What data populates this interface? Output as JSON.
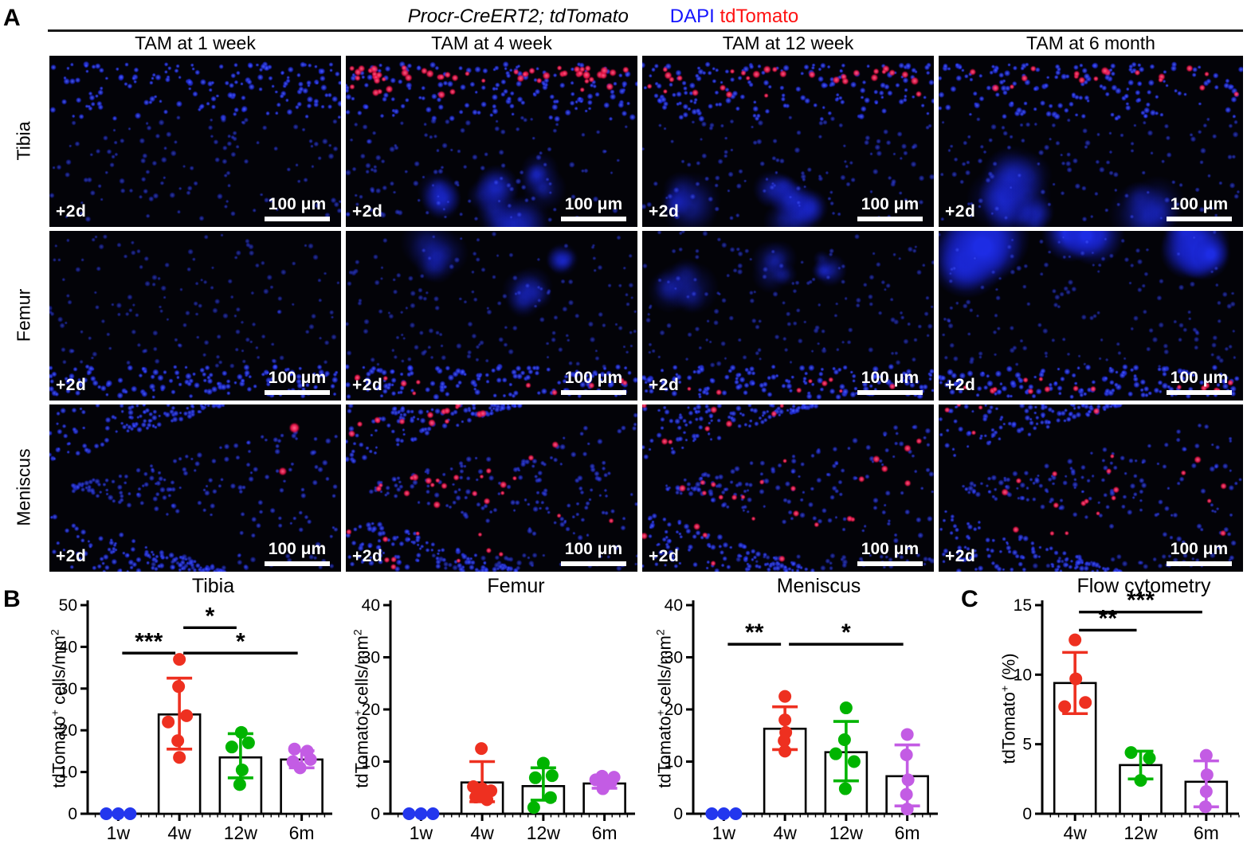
{
  "figure": {
    "panel_a_label": "A",
    "panel_b_label": "B",
    "panel_c_label": "C"
  },
  "panel_a": {
    "title_genotype": "Procr-CreERT2; tdTomato",
    "legend_dapi": "DAPI",
    "legend_tdtomato": "tdTomato",
    "colors": {
      "dapi_text": "#1414ff",
      "tdtomato_text": "#ff1212"
    },
    "column_headers": [
      "TAM at 1 week",
      "TAM at 4 week",
      "TAM at 12 week",
      "TAM at 6 month"
    ],
    "row_labels": [
      "Tibia",
      "Femur",
      "Meniscus"
    ],
    "time_label": "+2d",
    "scale_label": "100 μm",
    "tiles": [
      {
        "row": "Tibia",
        "col": "TAM at 1 week",
        "tissue": "tibia",
        "red_pattern": "none",
        "red_count": 0,
        "seed": 11,
        "blobs": false
      },
      {
        "row": "Tibia",
        "col": "TAM at 4 week",
        "tissue": "tibia",
        "red_pattern": "top",
        "red_count": 55,
        "seed": 12,
        "blobs": true
      },
      {
        "row": "Tibia",
        "col": "TAM at 12 week",
        "tissue": "tibia",
        "red_pattern": "top",
        "red_count": 30,
        "seed": 13,
        "blobs": true
      },
      {
        "row": "Tibia",
        "col": "TAM at 6 month",
        "tissue": "tibia",
        "red_pattern": "top",
        "red_count": 18,
        "seed": 14,
        "blobs": true
      },
      {
        "row": "Femur",
        "col": "TAM at 1 week",
        "tissue": "femur",
        "red_pattern": "none",
        "red_count": 0,
        "seed": 21,
        "blobs": false
      },
      {
        "row": "Femur",
        "col": "TAM at 4 week",
        "tissue": "femur",
        "red_pattern": "bottom",
        "red_count": 11,
        "seed": 22,
        "blobs": true
      },
      {
        "row": "Femur",
        "col": "TAM at 12 week",
        "tissue": "femur",
        "red_pattern": "bottom",
        "red_count": 8,
        "seed": 23,
        "blobs": true
      },
      {
        "row": "Femur",
        "col": "TAM at 6 month",
        "tissue": "femur",
        "red_pattern": "bottom",
        "red_count": 15,
        "seed": 24,
        "blobs": true,
        "big_blobs": true
      },
      {
        "row": "Meniscus",
        "col": "TAM at 1 week",
        "tissue": "meniscus",
        "red_pattern": "spots",
        "red_count": 2,
        "seed": 31
      },
      {
        "row": "Meniscus",
        "col": "TAM at 4 week",
        "tissue": "meniscus",
        "red_pattern": "wedge",
        "red_count": 46,
        "seed": 32
      },
      {
        "row": "Meniscus",
        "col": "TAM at 12 week",
        "tissue": "meniscus",
        "red_pattern": "wedge",
        "red_count": 34,
        "seed": 33
      },
      {
        "row": "Meniscus",
        "col": "TAM at 6 month",
        "tissue": "meniscus",
        "red_pattern": "wedge",
        "red_count": 24,
        "seed": 34
      }
    ]
  },
  "chart_data": [
    {
      "type": "bar",
      "title": "Tibia",
      "ylabel_parts": {
        "pre": "tdTomato",
        "sup1": "+",
        "mid": " cells/mm",
        "sup2": "2"
      },
      "ylim": [
        0,
        50
      ],
      "yticks": [
        0,
        10,
        20,
        30,
        40,
        50
      ],
      "categories": [
        "1w",
        "4w",
        "12w",
        "6m"
      ],
      "point_colors": [
        "#2337ee",
        "#ee3020",
        "#00b400",
        "#c35ce4"
      ],
      "bar_means": [
        0,
        23.8,
        13.5,
        13.0
      ],
      "points": [
        [
          0,
          0,
          0
        ],
        [
          37,
          30.5,
          23.5,
          22,
          17.5,
          13.5
        ],
        [
          19.5,
          17,
          16,
          10.5,
          7
        ],
        [
          15.5,
          15,
          13,
          12.5,
          11
        ]
      ],
      "point_dx": [
        [
          -15,
          0,
          15
        ],
        [
          0,
          -1,
          9,
          -14,
          -2,
          0
        ],
        [
          1,
          10,
          -11,
          2,
          -1
        ],
        [
          -9,
          7,
          11,
          -11,
          -2
        ]
      ],
      "error_bars": [
        null,
        {
          "low": 15.5,
          "high": 32.5
        },
        {
          "low": 8.6,
          "high": 19.2
        },
        {
          "low": 11,
          "high": 15.1
        }
      ],
      "significance": [
        {
          "from": 0,
          "to": 1,
          "label": "***",
          "y": 38.5
        },
        {
          "from": 1,
          "to": 2,
          "label": "*",
          "y": 44.6
        },
        {
          "from": 1,
          "to": 3,
          "label": "*",
          "y": 38.5
        }
      ]
    },
    {
      "type": "bar",
      "title": "Femur",
      "ylabel_parts": {
        "pre": "tdTomato",
        "sup1": "+",
        "mid": " cells/mm",
        "sup2": "2"
      },
      "ylim": [
        0,
        40
      ],
      "yticks": [
        0,
        10,
        20,
        30,
        40
      ],
      "categories": [
        "1w",
        "4w",
        "12w",
        "6m"
      ],
      "point_colors": [
        "#2337ee",
        "#ee3020",
        "#00b400",
        "#c35ce4"
      ],
      "bar_means": [
        0,
        6.0,
        5.3,
        5.8
      ],
      "points": [
        [
          0,
          0,
          0
        ],
        [
          12.5,
          5.2,
          4.8,
          4.4,
          3.2,
          2.7
        ],
        [
          9.7,
          7.3,
          6.9,
          3.1,
          1.2
        ],
        [
          7.2,
          7.0,
          6.5,
          6.0,
          5.5,
          4.8
        ]
      ],
      "point_dx": [
        [
          -15,
          0,
          15
        ],
        [
          -1,
          -11,
          0,
          11,
          -8,
          6
        ],
        [
          0,
          11,
          -10,
          9,
          -12
        ],
        [
          -3,
          12,
          -11,
          8,
          1,
          -2
        ]
      ],
      "error_bars": [
        null,
        {
          "low": 2.3,
          "high": 10.0
        },
        {
          "low": 2.6,
          "high": 8.8
        },
        {
          "low": 4.9,
          "high": 6.9
        }
      ],
      "significance": []
    },
    {
      "type": "bar",
      "title": "Meniscus",
      "ylabel_parts": {
        "pre": "tdTomato",
        "sup1": "+",
        "mid": " cells/mm",
        "sup2": "2"
      },
      "ylim": [
        0,
        40
      ],
      "yticks": [
        0,
        10,
        20,
        30,
        40
      ],
      "categories": [
        "1w",
        "4w",
        "12w",
        "6m"
      ],
      "point_colors": [
        "#2337ee",
        "#ee3020",
        "#00b400",
        "#c35ce4"
      ],
      "bar_means": [
        0,
        16.3,
        11.8,
        7.2
      ],
      "points": [
        [
          0,
          0,
          0
        ],
        [
          22.5,
          18,
          15.6,
          14,
          12
        ],
        [
          20.3,
          14.2,
          11.5,
          10,
          4.8
        ],
        [
          15.2,
          11.3,
          6.5,
          3.7,
          0.9
        ]
      ],
      "point_dx": [
        [
          -15,
          0,
          15
        ],
        [
          0,
          0,
          1,
          -1,
          0
        ],
        [
          0,
          -2,
          -13,
          10,
          -1
        ],
        [
          0,
          -1,
          1,
          -1,
          0
        ]
      ],
      "error_bars": [
        null,
        {
          "low": 12.3,
          "high": 20.5
        },
        {
          "low": 6.3,
          "high": 17.7
        },
        {
          "low": 1.5,
          "high": 13.2
        }
      ],
      "significance": [
        {
          "from": 0,
          "to": 1,
          "label": "**",
          "y": 32.5
        },
        {
          "from": 1,
          "to": 3,
          "label": "*",
          "y": 32.5
        }
      ]
    },
    {
      "type": "bar",
      "title": "Flow cytometry",
      "ylabel_parts": {
        "pre": "tdTomato",
        "sup1": "+",
        "mid": " (%)",
        "sup2": ""
      },
      "ylim": [
        0,
        15
      ],
      "yticks": [
        0,
        5,
        10,
        15
      ],
      "categories": [
        "4w",
        "12w",
        "6m"
      ],
      "point_colors": [
        "#ee3020",
        "#00b400",
        "#c35ce4"
      ],
      "bar_means": [
        9.4,
        3.5,
        2.3
      ],
      "points": [
        [
          12.5,
          9.7,
          8.0,
          7.7
        ],
        [
          4.4,
          4.0,
          2.4
        ],
        [
          4.2,
          2.8,
          1.6,
          0.5
        ]
      ],
      "point_dx": [
        [
          0,
          1,
          13,
          -13
        ],
        [
          -12,
          11,
          0
        ],
        [
          0,
          1,
          0,
          -1
        ]
      ],
      "error_bars": [
        {
          "low": 7.2,
          "high": 11.6
        },
        {
          "low": 2.5,
          "high": 4.5
        },
        {
          "low": 0.5,
          "high": 3.8
        }
      ],
      "significance": [
        {
          "from": 0,
          "to": 1,
          "label": "**",
          "y": 13.2
        },
        {
          "from": 0,
          "to": 2,
          "label": "***",
          "y": 14.5
        }
      ]
    }
  ]
}
